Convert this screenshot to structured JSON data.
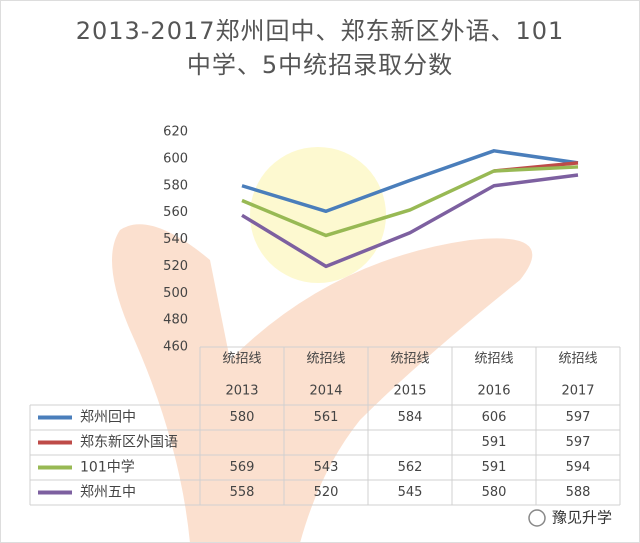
{
  "chart_data": {
    "type": "line",
    "title": "2013-2017郑州回中、郑东新区外语、101中学、5中统招录取分数",
    "categories": [
      [
        "统招线",
        "2013"
      ],
      [
        "统招线",
        "2014"
      ],
      [
        "统招线",
        "2015"
      ],
      [
        "统招线",
        "2016"
      ],
      [
        "统招线",
        "2017"
      ]
    ],
    "series": [
      {
        "name": "郑州回中",
        "color": "#4a7ebb",
        "values": [
          580,
          561,
          584,
          606,
          597
        ]
      },
      {
        "name": "郑东新区外国语",
        "color": "#be4b48",
        "values": [
          null,
          null,
          null,
          591,
          597
        ]
      },
      {
        "name": "101中学",
        "color": "#98b954",
        "values": [
          569,
          543,
          562,
          591,
          594
        ]
      },
      {
        "name": "郑州五中",
        "color": "#7d60a0",
        "values": [
          558,
          520,
          545,
          580,
          588
        ]
      }
    ],
    "ylim": [
      460,
      620
    ],
    "yticks": [
      460,
      480,
      500,
      520,
      540,
      560,
      580,
      600,
      620
    ],
    "grid": false,
    "watermark": "豫见升学"
  }
}
